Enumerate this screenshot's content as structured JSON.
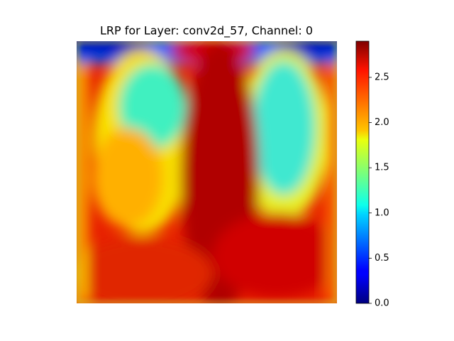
{
  "chart_data": {
    "type": "heatmap",
    "title": "LRP for Layer: conv2d_57, Channel: 0",
    "colormap": "jet",
    "clim": [
      0,
      2.9
    ],
    "cticks": [
      {
        "value": 0,
        "label": "0.0"
      },
      0.5,
      {
        "value": 1,
        "label": "1.0"
      },
      1.5,
      {
        "value": 2,
        "label": "2.0"
      },
      2.5
    ]
  }
}
